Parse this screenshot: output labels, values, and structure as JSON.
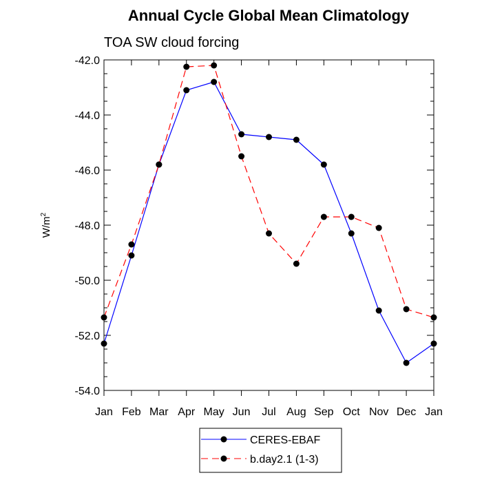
{
  "chart_data": {
    "type": "line",
    "title": "Annual Cycle Global Mean Climatology",
    "subtitle": "TOA SW cloud forcing",
    "ylabel": "W/m",
    "ylabel_sup": "2",
    "xlabel": "",
    "categories": [
      "Jan",
      "Feb",
      "Mar",
      "Apr",
      "May",
      "Jun",
      "Jul",
      "Aug",
      "Sep",
      "Oct",
      "Nov",
      "Dec",
      "Jan"
    ],
    "ylim": [
      -54.0,
      -42.0
    ],
    "yticks": [
      "-54.0",
      "-52.0",
      "-50.0",
      "-48.0",
      "-46.0",
      "-44.0",
      "-42.0"
    ],
    "ytick_values": [
      -54,
      -52,
      -50,
      -48,
      -46,
      -44,
      -42
    ],
    "grid": false,
    "legend_position": "bottom-center",
    "series": [
      {
        "name": "CERES-EBAF",
        "color": "#0000ff",
        "dash": "solid",
        "marker": "circle",
        "values": [
          -52.3,
          -49.1,
          -45.8,
          -43.1,
          -42.8,
          -44.7,
          -44.8,
          -44.9,
          -45.8,
          -48.3,
          -51.1,
          -53.0,
          -52.3
        ]
      },
      {
        "name": "b.day2.1 (1-3)",
        "color": "#ff0000",
        "dash": "dashed",
        "marker": "circle",
        "values": [
          -51.35,
          -48.7,
          -45.8,
          -42.25,
          -42.2,
          -45.5,
          -48.3,
          -49.4,
          -47.7,
          -47.7,
          -48.1,
          -51.05,
          -51.35
        ]
      }
    ]
  }
}
